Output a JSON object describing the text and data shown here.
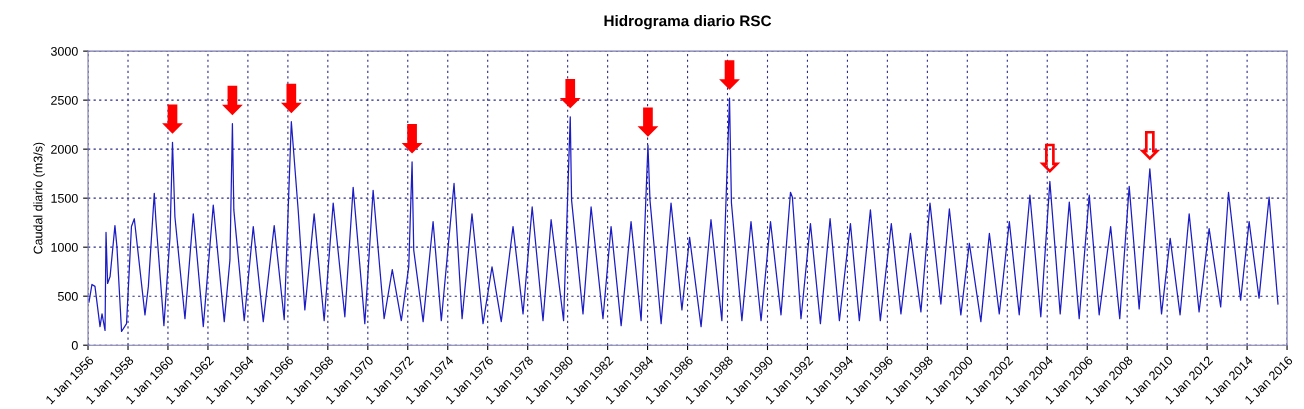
{
  "chart_data": {
    "type": "line",
    "title": "Hidrograma diario RSC",
    "ylabel": "Caudal diario (m3/s)",
    "x": [
      "1956-01-19",
      "1956-03-13",
      "1956-05-07",
      "1956-08-07",
      "1956-09-13",
      "1956-11-07",
      "1956-11-25",
      "1956-12-24",
      "1957-02-07",
      "1957-05-07",
      "1957-06-13",
      "1957-09-05",
      "1957-12-05",
      "1958-03-05",
      "1958-04-26",
      "1958-11-07",
      "1959-01-08",
      "1959-04-26",
      "1959-05-25",
      "1959-10-19",
      "1960-02-07",
      "1960-03-24",
      "1960-05-07",
      "1960-11-07",
      "1961-04-08",
      "1961-10-08",
      "1962-04-08",
      "1962-10-26",
      "1963-02-07",
      "1963-03-24",
      "1963-04-19",
      "1963-10-26",
      "1964-04-08",
      "1964-10-08",
      "1965-04-26",
      "1965-10-26",
      "1966-03-05",
      "1966-07-08",
      "1966-11-07",
      "1967-04-26",
      "1967-10-26",
      "1968-04-08",
      "1968-11-07",
      "1969-04-08",
      "1969-11-07",
      "1970-04-08",
      "1970-10-26",
      "1971-03-24",
      "1971-09-05",
      "1972-01-19",
      "1972-03-20",
      "1972-04-19",
      "1972-10-08",
      "1973-04-08",
      "1973-09-05",
      "1974-04-26",
      "1974-09-20",
      "1975-03-20",
      "1975-10-08",
      "1976-03-20",
      "1976-09-05",
      "1977-04-08",
      "1977-10-08",
      "1978-03-24",
      "1978-10-08",
      "1979-03-05",
      "1979-10-19",
      "1980-02-18",
      "1980-03-13",
      "1980-10-08",
      "1981-03-05",
      "1981-10-08",
      "1982-03-05",
      "1982-09-05",
      "1983-03-05",
      "1983-09-05",
      "1984-01-08",
      "1984-02-14",
      "1984-09-05",
      "1985-03-05",
      "1985-09-20",
      "1986-02-07",
      "1986-09-05",
      "1987-03-05",
      "1987-09-20",
      "1988-02-07",
      "1988-03-13",
      "1988-09-20",
      "1989-03-05",
      "1989-09-05",
      "1990-02-25",
      "1990-09-05",
      "1991-02-25",
      "1991-04-01",
      "1991-09-05",
      "1992-02-25",
      "1992-08-25",
      "1993-02-18",
      "1993-08-07",
      "1994-02-25",
      "1994-08-07",
      "1995-02-25",
      "1995-08-25",
      "1996-03-13",
      "1996-09-05",
      "1997-02-25",
      "1997-09-05",
      "1998-02-18",
      "1998-09-05",
      "1999-02-07",
      "1999-09-05",
      "2000-02-07",
      "2000-09-05",
      "2001-02-07",
      "2001-08-07",
      "2002-02-07",
      "2002-08-07",
      "2003-02-18",
      "2003-09-05",
      "2004-02-18",
      "2004-08-25",
      "2005-02-07",
      "2005-08-07",
      "2006-02-07",
      "2006-08-07",
      "2007-03-05",
      "2007-08-18",
      "2008-02-07",
      "2008-08-07",
      "2009-02-18",
      "2009-09-20",
      "2010-02-25",
      "2010-08-25",
      "2011-02-07",
      "2011-08-07",
      "2012-02-07",
      "2012-09-05",
      "2013-01-26",
      "2013-09-05",
      "2014-02-07",
      "2014-08-07",
      "2015-02-07",
      "2015-07-19"
    ],
    "series": [
      {
        "color": "#1c1cc4",
        "values": [
          440,
          620,
          600,
          190,
          320,
          150,
          1150,
          630,
          700,
          1220,
          1000,
          140,
          220,
          1210,
          1290,
          310,
          600,
          1550,
          1280,
          200,
          1100,
          2070,
          1310,
          270,
          1340,
          190,
          1430,
          240,
          870,
          2260,
          1380,
          250,
          1210,
          240,
          1220,
          260,
          2280,
          1380,
          360,
          1340,
          250,
          1450,
          290,
          1610,
          220,
          1580,
          270,
          770,
          250,
          800,
          1870,
          970,
          240,
          1260,
          250,
          1650,
          270,
          1340,
          220,
          800,
          240,
          1210,
          320,
          1410,
          250,
          1280,
          250,
          2330,
          1480,
          320,
          1410,
          270,
          1210,
          200,
          1260,
          250,
          2040,
          1480,
          220,
          1450,
          360,
          1100,
          190,
          1280,
          250,
          2520,
          1450,
          250,
          1260,
          250,
          1260,
          310,
          1560,
          1510,
          270,
          1240,
          220,
          1290,
          250,
          1240,
          250,
          1380,
          250,
          1240,
          320,
          1140,
          340,
          1450,
          420,
          1390,
          310,
          1040,
          240,
          1140,
          320,
          1260,
          310,
          1530,
          290,
          1670,
          320,
          1460,
          270,
          1530,
          310,
          1210,
          270,
          1620,
          370,
          1800,
          320,
          1090,
          310,
          1340,
          340,
          1190,
          390,
          1560,
          460,
          1260,
          480,
          1510,
          420
        ]
      }
    ],
    "xlim": [
      "1956-01-01",
      "2016-01-01"
    ],
    "ylim": [
      0,
      3000
    ],
    "xticks": [
      {
        "value": "1956-01-01",
        "label": "1 Jan 1956"
      },
      {
        "value": "1958-01-01",
        "label": "1 Jan 1958"
      },
      {
        "value": "1960-01-01",
        "label": "1 Jan 1960"
      },
      {
        "value": "1962-01-01",
        "label": "1 Jan 1962"
      },
      {
        "value": "1964-01-01",
        "label": "1 Jan 1964"
      },
      {
        "value": "1966-01-01",
        "label": "1 Jan 1966"
      },
      {
        "value": "1968-01-01",
        "label": "1 Jan 1968"
      },
      {
        "value": "1970-01-01",
        "label": "1 Jan 1970"
      },
      {
        "value": "1972-01-01",
        "label": "1 Jan 1972"
      },
      {
        "value": "1974-01-01",
        "label": "1 Jan 1974"
      },
      {
        "value": "1976-01-01",
        "label": "1 Jan 1976"
      },
      {
        "value": "1978-01-01",
        "label": "1 Jan 1978"
      },
      {
        "value": "1980-01-01",
        "label": "1 Jan 1980"
      },
      {
        "value": "1982-01-01",
        "label": "1 Jan 1982"
      },
      {
        "value": "1984-01-01",
        "label": "1 Jan 1984"
      },
      {
        "value": "1986-01-01",
        "label": "1 Jan 1986"
      },
      {
        "value": "1988-01-01",
        "label": "1 Jan 1988"
      },
      {
        "value": "1990-01-01",
        "label": "1 Jan 1990"
      },
      {
        "value": "1992-01-01",
        "label": "1 Jan 1992"
      },
      {
        "value": "1994-01-01",
        "label": "1 Jan 1994"
      },
      {
        "value": "1996-01-01",
        "label": "1 Jan 1996"
      },
      {
        "value": "1998-01-01",
        "label": "1 Jan 1998"
      },
      {
        "value": "2000-01-01",
        "label": "1 Jan 2000"
      },
      {
        "value": "2002-01-01",
        "label": "1 Jan 2002"
      },
      {
        "value": "2004-01-01",
        "label": "1 Jan 2004"
      },
      {
        "value": "2006-01-01",
        "label": "1 Jan 2006"
      },
      {
        "value": "2008-01-01",
        "label": "1 Jan 2008"
      },
      {
        "value": "2010-01-01",
        "label": "1 Jan 2010"
      },
      {
        "value": "2012-01-01",
        "label": "1 Jan 2012"
      },
      {
        "value": "2014-01-01",
        "label": "1 Jan 2014"
      },
      {
        "value": "2016-01-01",
        "label": "1 Jan 2016"
      }
    ],
    "yticks": [
      0,
      500,
      1000,
      1500,
      2000,
      2500,
      3000
    ],
    "grid": true,
    "marker": "none",
    "line_style": "solid",
    "annotations": [
      {
        "text": "⬇",
        "x": "1960-03-24",
        "y": 2070
      },
      {
        "text": "⬇",
        "x": "1963-03-24",
        "y": 2260
      },
      {
        "text": "⬇",
        "x": "1966-03-05",
        "y": 2280
      },
      {
        "text": "⬇",
        "x": "1972-03-20",
        "y": 1870
      },
      {
        "text": "⬇",
        "x": "1980-02-18",
        "y": 2330
      },
      {
        "text": "⬇",
        "x": "1984-01-08",
        "y": 2040
      },
      {
        "text": "⬇",
        "x": "1988-02-07",
        "y": 2520
      },
      {
        "text": "⇩",
        "x": "2004-02-18",
        "y": 1670
      },
      {
        "text": "⇩",
        "x": "2009-02-18",
        "y": 1800
      }
    ]
  }
}
